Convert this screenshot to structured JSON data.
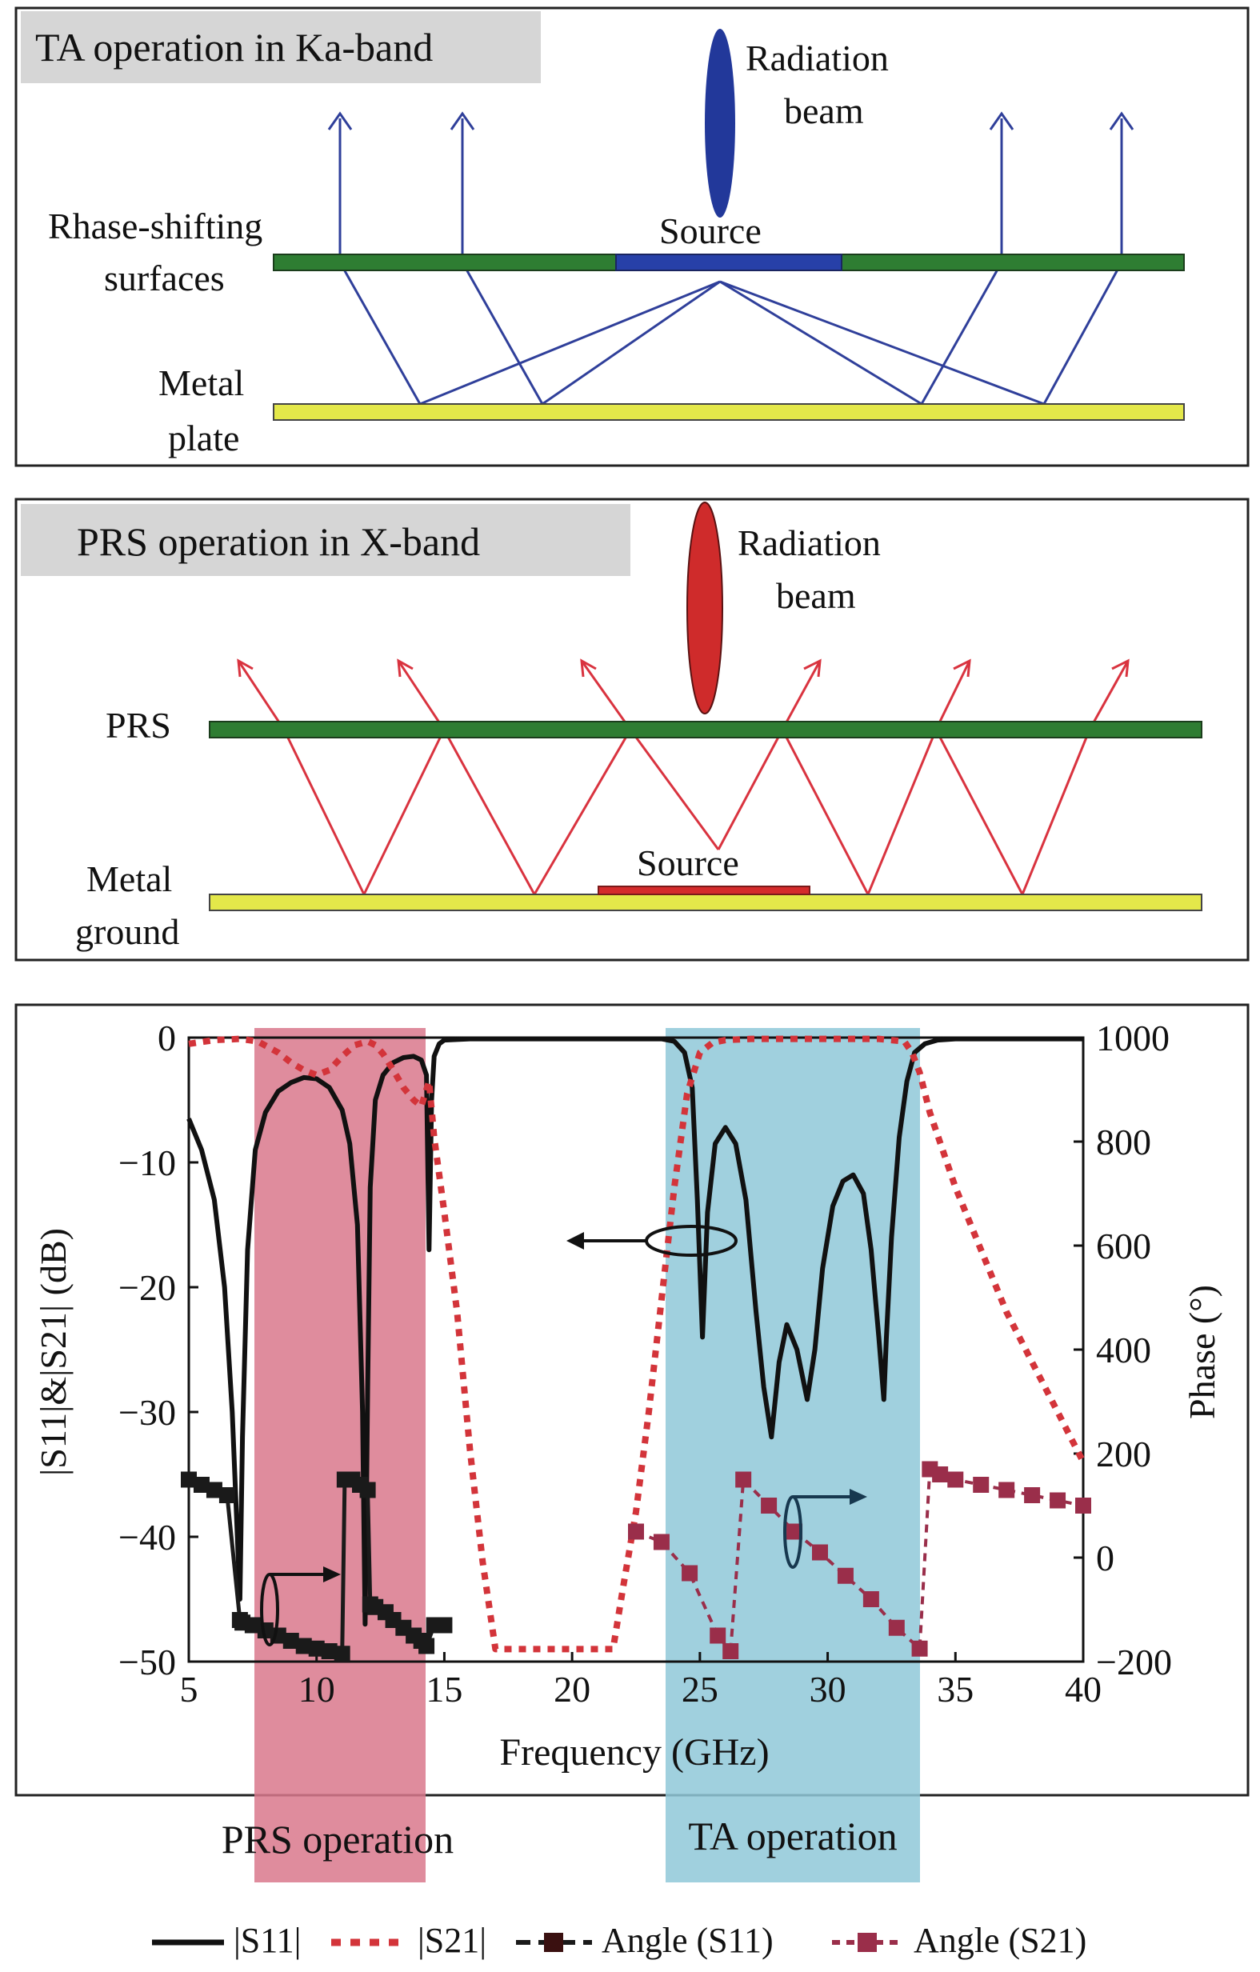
{
  "panel_ta": {
    "title": "TA operation in Ka-band",
    "beam_label_1": "Radiation",
    "beam_label_2": "beam",
    "surface_label_1": "Rhase-shifting",
    "surface_label_2": "surfaces",
    "source_label": "Source",
    "plate_label_1": "Metal",
    "plate_label_2": "plate",
    "colors": {
      "ray": "#2f3f9a",
      "beam": "#22389a",
      "surface": "#2e7d32",
      "plate": "#e4e84a",
      "source": "#2740a8"
    }
  },
  "panel_prs": {
    "title": "PRS operation in X-band",
    "beam_label_1": "Radiation",
    "beam_label_2": "beam",
    "surface_label": "PRS",
    "source_label": "Source",
    "ground_label_1": "Metal",
    "ground_label_2": "ground",
    "colors": {
      "ray": "#d9333f",
      "beam": "#cf2b2b",
      "surface": "#2e7d32",
      "plate": "#e4e84a",
      "source": "#d42b2b"
    }
  },
  "legend": {
    "s11": "|S11|",
    "s21": "|S21|",
    "ang_s11": "Angle (S11)",
    "ang_s21": "Angle (S21)"
  },
  "band_labels": {
    "prs": "PRS operation",
    "ta": "TA operation"
  },
  "chart_data": {
    "type": "line",
    "xlabel": "Frequency (GHz)",
    "ylabel": "|S11|&|S21| (dB)",
    "y2label": "Phase (°)",
    "xlim": [
      5,
      40
    ],
    "ylim": [
      -50,
      0
    ],
    "y2lim": [
      -200,
      1000
    ],
    "x_ticks": [
      5,
      10,
      15,
      20,
      25,
      30,
      35,
      40
    ],
    "y_ticks": [
      0,
      -10,
      -20,
      -30,
      -40,
      -50
    ],
    "y2_ticks": [
      1000,
      800,
      600,
      400,
      200,
      0,
      -200
    ],
    "bands": [
      {
        "name": "PRS operation",
        "range": [
          7.6,
          14.3
        ],
        "color": "#d9788c"
      },
      {
        "name": "TA operation",
        "range": [
          23.7,
          33.6
        ],
        "color": "#8fc8d8"
      }
    ],
    "series": [
      {
        "name": "|S11|",
        "axis": "left",
        "style": "solid",
        "color": "#111111",
        "x": [
          5,
          5.5,
          6,
          6.4,
          6.7,
          6.9,
          7.0,
          7.1,
          7.3,
          7.6,
          8,
          8.5,
          9,
          9.5,
          10,
          10.5,
          11,
          11.3,
          11.6,
          11.8,
          11.9,
          12.0,
          12.1,
          12.3,
          12.6,
          13,
          13.4,
          13.8,
          14.1,
          14.3,
          14.4,
          14.5,
          14.6,
          14.8,
          15,
          16,
          18,
          20,
          22,
          23.5,
          24,
          24.4,
          24.7,
          24.9,
          25.1,
          25.3,
          25.6,
          26,
          26.4,
          26.8,
          27.2,
          27.5,
          27.8,
          28.1,
          28.4,
          28.8,
          29.2,
          29.5,
          29.8,
          30.2,
          30.6,
          31,
          31.4,
          31.7,
          32,
          32.2,
          32.3,
          32.5,
          32.8,
          33.1,
          33.4,
          33.8,
          34.3,
          35,
          37,
          40
        ],
        "y": [
          -6.5,
          -9,
          -13,
          -20,
          -30,
          -40,
          -45,
          -32,
          -17,
          -9,
          -6,
          -4.3,
          -3.6,
          -3.2,
          -3.3,
          -4,
          -5.8,
          -8.5,
          -15,
          -30,
          -47,
          -28,
          -12,
          -5,
          -3,
          -2,
          -1.6,
          -1.5,
          -1.8,
          -3,
          -17,
          -5,
          -1.5,
          -0.5,
          -0.2,
          -0.1,
          -0.1,
          -0.1,
          -0.1,
          -0.1,
          -0.3,
          -1.2,
          -4,
          -13,
          -24,
          -14,
          -8.5,
          -7.2,
          -8.5,
          -13,
          -22,
          -28,
          -32,
          -26,
          -23,
          -25,
          -29,
          -25,
          -18.5,
          -13.5,
          -11.5,
          -11,
          -12.5,
          -17,
          -24,
          -29,
          -24,
          -16,
          -8,
          -3.5,
          -1.2,
          -0.5,
          -0.2,
          -0.1,
          -0.1,
          -0.1
        ]
      },
      {
        "name": "|S21|",
        "axis": "left",
        "style": "dotted",
        "color": "#d3343a",
        "x": [
          5,
          6,
          7,
          7.7,
          8.5,
          9,
          9.5,
          10,
          10.5,
          11,
          11.5,
          12,
          12.3,
          12.6,
          13,
          13.4,
          13.8,
          14.1,
          14.4,
          14.6,
          15,
          15.5,
          16,
          16.5,
          17,
          21.6,
          22,
          22.5,
          23,
          23.5,
          24,
          24.5,
          25,
          25.5,
          26,
          27,
          28,
          29,
          30,
          31,
          32,
          33,
          33.3,
          33.6,
          34,
          35,
          36,
          37,
          38,
          39,
          40
        ],
        "y": [
          -0.5,
          -0.2,
          -0.1,
          -0.3,
          -1.2,
          -2,
          -2.6,
          -3,
          -2.6,
          -1.5,
          -0.6,
          -0.3,
          -0.6,
          -1.3,
          -2.6,
          -4,
          -5,
          -5.5,
          -3.5,
          -8,
          -14,
          -22,
          -33,
          -42,
          -49,
          -49,
          -44,
          -38,
          -30,
          -21,
          -12,
          -4.5,
          -1.2,
          -0.4,
          -0.2,
          -0.1,
          -0.1,
          -0.1,
          -0.1,
          -0.1,
          -0.1,
          -0.3,
          -1.2,
          -2.8,
          -6,
          -12,
          -17,
          -22,
          -26,
          -30,
          -34
        ]
      },
      {
        "name": "Angle (S11)",
        "axis": "right",
        "style": "square-markers",
        "color": "#1a1a1a",
        "x": [
          5,
          5.5,
          6,
          6.5,
          7,
          7.1,
          7.5,
          8,
          8.5,
          9,
          9.5,
          10,
          10.5,
          11,
          11.1,
          11.4,
          11.7,
          12,
          12.1,
          12.3,
          12.7,
          13,
          13.4,
          13.8,
          14.1,
          14.3,
          14.6,
          15
        ],
        "y": [
          150,
          140,
          130,
          120,
          -120,
          -125,
          -130,
          -140,
          -150,
          -160,
          -170,
          -175,
          -180,
          -185,
          150,
          150,
          140,
          130,
          -90,
          -95,
          -105,
          -120,
          -135,
          -150,
          -160,
          -170,
          -130,
          -130
        ]
      },
      {
        "name": "Angle (S21)",
        "axis": "right",
        "style": "dashed-square-markers",
        "color": "#9a2e4a",
        "x": [
          22.5,
          23.5,
          24.6,
          25.7,
          26.2,
          26.7,
          27.7,
          28.7,
          29.7,
          30.7,
          31.7,
          32.7,
          33.6,
          34,
          34.4,
          35,
          36,
          37,
          38,
          39,
          40
        ],
        "y": [
          50,
          30,
          -30,
          -150,
          -180,
          150,
          100,
          50,
          10,
          -35,
          -80,
          -135,
          -175,
          170,
          160,
          150,
          140,
          130,
          120,
          110,
          100
        ]
      }
    ]
  }
}
